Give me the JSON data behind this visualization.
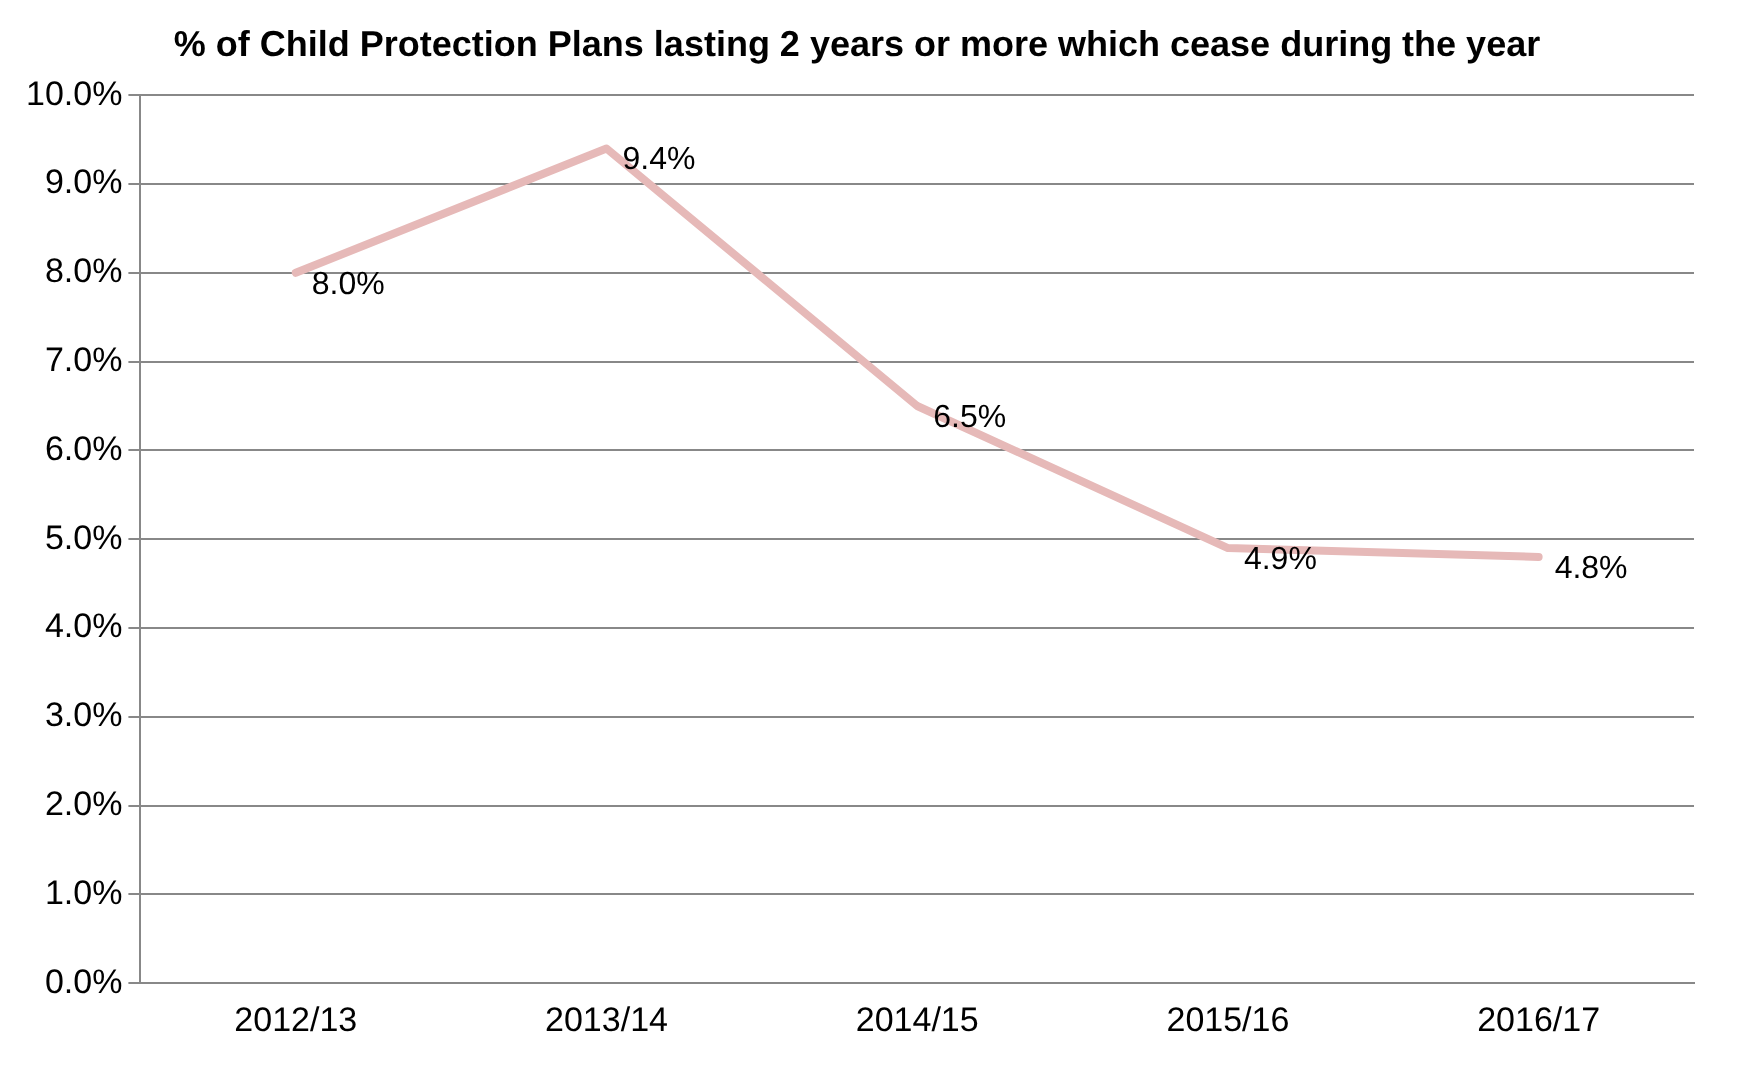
{
  "chart_data": {
    "type": "line",
    "title": "% of Child Protection Plans lasting 2 years or more which cease during the year",
    "categories": [
      "2012/13",
      "2013/14",
      "2014/15",
      "2015/16",
      "2016/17"
    ],
    "series": [
      {
        "color": "#e6b9b8",
        "values": [
          8.0,
          9.4,
          6.5,
          4.9,
          4.8
        ],
        "value_labels": [
          "8.0%",
          "9.4%",
          "6.5%",
          "4.9%",
          "4.8%"
        ]
      }
    ],
    "ylim": [
      0,
      10
    ],
    "yticks": [
      {
        "value": 0,
        "label": "0.0%"
      },
      {
        "value": 1,
        "label": "1.0%"
      },
      {
        "value": 2,
        "label": "2.0%"
      },
      {
        "value": 3,
        "label": "3.0%"
      },
      {
        "value": 4,
        "label": "4.0%"
      },
      {
        "value": 5,
        "label": "5.0%"
      },
      {
        "value": 6,
        "label": "6.0%"
      },
      {
        "value": 7,
        "label": "7.0%"
      },
      {
        "value": 8,
        "label": "8.0%"
      },
      {
        "value": 9,
        "label": "9.0%"
      },
      {
        "value": 10,
        "label": "10.0%"
      }
    ],
    "grid": "y",
    "legend": false,
    "marker": "none",
    "line_style": "solid"
  }
}
